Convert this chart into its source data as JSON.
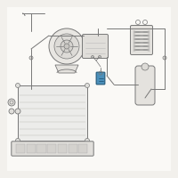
{
  "bg_color": "#f2f0ec",
  "line_color": "#999999",
  "dark_line": "#777777",
  "highlight_color": "#4a8fba",
  "highlight_dark": "#2a6080"
}
